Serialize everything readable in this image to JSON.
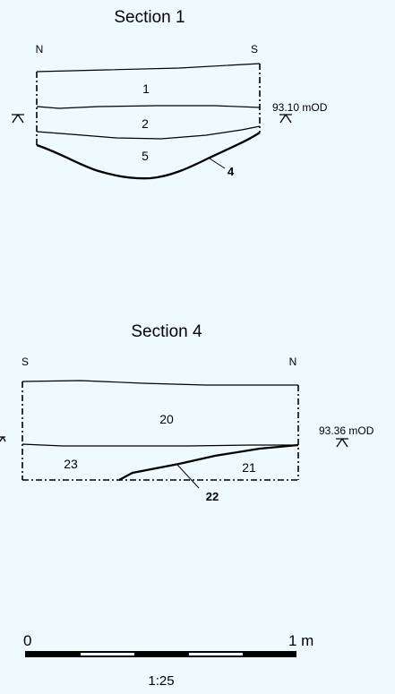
{
  "figure": {
    "sections": [
      {
        "title": "Section 1",
        "left_dir": "N",
        "right_dir": "S",
        "datum_label": "93.10 mOD",
        "layers": [
          "1",
          "2",
          "5"
        ],
        "cut_label": "4"
      },
      {
        "title": "Section 4",
        "left_dir": "S",
        "right_dir": "N",
        "datum_label": "93.36 mOD",
        "layers": [
          "20",
          "23",
          "21"
        ],
        "cut_label": "22"
      }
    ],
    "scale_bar": {
      "start_label": "0",
      "end_label": "1 m",
      "ratio": "1:25",
      "segments": 4
    }
  },
  "colors": {
    "background": "#eefafe",
    "ink": "#000000"
  }
}
